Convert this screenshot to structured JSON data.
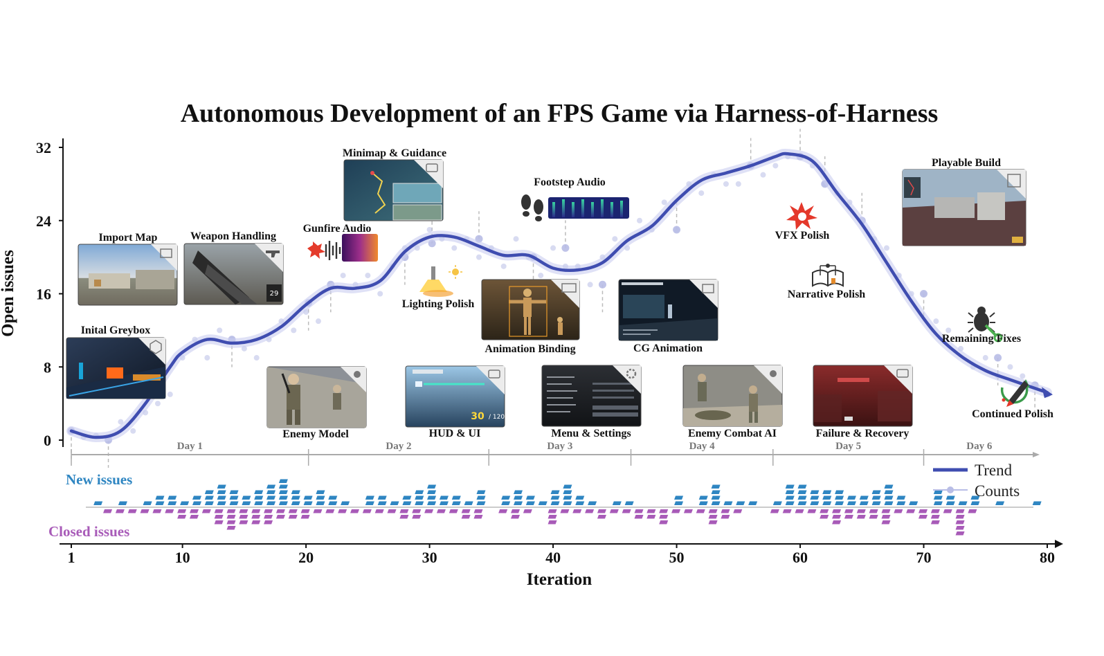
{
  "chart_data": {
    "type": "line",
    "title": "Autonomous Development of an FPS Game via Harness-of-Harness",
    "xlabel": "Iteration",
    "ylabel": "Open issues",
    "xlim": [
      1,
      80
    ],
    "ylim": [
      0,
      32
    ],
    "xticks": [
      1,
      10,
      20,
      30,
      40,
      50,
      60,
      70,
      80
    ],
    "yticks": [
      0,
      8,
      16,
      24,
      32
    ],
    "grid": false,
    "legend": {
      "position": "bottom-right",
      "entries": [
        "Trend",
        "Counts"
      ]
    },
    "colors": {
      "trend": "#3f4db0",
      "trend_halo": "#c9cdf0",
      "counts": "#b8bde6",
      "new": "#2f86c2",
      "closed": "#a85bb8",
      "guide": "#bbbbbb",
      "day_axis": "#aaaaaa"
    },
    "trend": {
      "x": [
        1,
        3,
        5,
        7,
        9,
        10,
        12,
        14,
        16,
        18,
        20,
        22,
        24,
        26,
        28,
        30,
        32,
        34,
        36,
        38,
        40,
        42,
        44,
        46,
        48,
        50,
        52,
        54,
        56,
        58,
        59,
        61,
        63,
        65,
        67,
        69,
        71,
        73,
        75,
        77,
        80
      ],
      "y": [
        1,
        0.3,
        1,
        4,
        8,
        9.6,
        11,
        10.6,
        11,
        12.4,
        14.8,
        16.6,
        16.6,
        17.4,
        20.6,
        22.2,
        22.2,
        21.2,
        20.2,
        20.2,
        18.8,
        18.6,
        19.4,
        21.8,
        23.4,
        26.2,
        28.4,
        29.2,
        30,
        31,
        31.3,
        30.5,
        27,
        23.6,
        19.4,
        15.2,
        11.6,
        9.2,
        7.6,
        6.6,
        5.2
      ]
    },
    "counts": {
      "x": [
        1,
        2,
        3,
        4,
        5,
        6,
        7,
        8,
        9,
        10,
        11,
        12,
        13,
        14,
        15,
        16,
        17,
        18,
        19,
        20,
        21,
        22,
        23,
        24,
        25,
        26,
        27,
        28,
        29,
        30,
        31,
        32,
        33,
        34,
        35,
        36,
        37,
        38,
        39,
        40,
        41,
        42,
        43,
        44,
        45,
        46,
        47,
        48,
        49,
        50,
        51,
        52,
        53,
        54,
        55,
        56,
        57,
        58,
        59,
        60,
        61,
        62,
        63,
        64,
        65,
        66,
        67,
        68,
        69,
        70,
        71,
        72,
        73,
        74,
        75,
        76,
        77,
        78,
        79,
        80
      ],
      "y": [
        1,
        0.3,
        0.5,
        0,
        2,
        1,
        3,
        4,
        5,
        9,
        11,
        9,
        12,
        11,
        10,
        9,
        11,
        13,
        12,
        14,
        13,
        17,
        18,
        17,
        18,
        16,
        19,
        21,
        21,
        23,
        22,
        21,
        22,
        20,
        21,
        19,
        22,
        20,
        18,
        21,
        19,
        19,
        17,
        20,
        22,
        21,
        24,
        23,
        26,
        23,
        28,
        27,
        29,
        28,
        28,
        30,
        29,
        30,
        31,
        31,
        30,
        28,
        27,
        26,
        24,
        22,
        21,
        18,
        16,
        16,
        13,
        12,
        10,
        8,
        9,
        7,
        8,
        7,
        6,
        5
      ]
    },
    "days": [
      {
        "label": "Day 1",
        "start": 1,
        "end": 20.2
      },
      {
        "label": "Day 2",
        "start": 20.2,
        "end": 34.8
      },
      {
        "label": "Day 3",
        "start": 34.8,
        "end": 46.3
      },
      {
        "label": "Day 4",
        "start": 46.3,
        "end": 57.8
      },
      {
        "label": "Day 5",
        "start": 57.8,
        "end": 70
      },
      {
        "label": "Day 6",
        "start": 70,
        "end": 79
      }
    ],
    "new_issues_label": "New issues",
    "closed_issues_label": "Closed issues",
    "new_issues": [
      0,
      0,
      1,
      0,
      1,
      0,
      1,
      2,
      2,
      1,
      2,
      3,
      4,
      3,
      2,
      3,
      4,
      5,
      3,
      2,
      3,
      2,
      1,
      0,
      2,
      2,
      1,
      2,
      3,
      4,
      2,
      2,
      1,
      3,
      0,
      2,
      3,
      2,
      1,
      3,
      4,
      2,
      1,
      0,
      1,
      1,
      0,
      0,
      0,
      2,
      0,
      2,
      4,
      1,
      1,
      1,
      0,
      1,
      4,
      4,
      3,
      3,
      3,
      2,
      2,
      3,
      4,
      2,
      1,
      0,
      3,
      2,
      1,
      2,
      0,
      1,
      0,
      0,
      1,
      0
    ],
    "closed_issues": [
      0,
      0,
      0,
      1,
      1,
      1,
      1,
      1,
      1,
      2,
      2,
      1,
      3,
      4,
      3,
      3,
      3,
      2,
      2,
      2,
      1,
      1,
      1,
      1,
      1,
      1,
      1,
      2,
      2,
      1,
      1,
      1,
      2,
      2,
      0,
      1,
      2,
      1,
      0,
      3,
      1,
      1,
      1,
      2,
      1,
      1,
      2,
      2,
      3,
      1,
      1,
      1,
      3,
      2,
      1,
      0,
      0,
      1,
      1,
      1,
      1,
      2,
      3,
      2,
      2,
      2,
      3,
      1,
      1,
      2,
      3,
      1,
      5,
      1,
      0,
      0,
      0,
      0,
      0,
      0
    ],
    "milestones": [
      {
        "label": "Inital Greybox",
        "x": 1,
        "y": 1
      },
      {
        "label": "Import Map",
        "x": 4,
        "y": 0
      },
      {
        "label": "Weapon Handling",
        "x": 14,
        "y": 11
      },
      {
        "label": "Enemy Model",
        "x": 20.2,
        "y": 15
      },
      {
        "label": "Gunfire Audio",
        "x": 22,
        "y": 17
      },
      {
        "label": "Lighting Polish",
        "x": 30.2,
        "y": 21.5
      },
      {
        "label": "Minimap & Guidance",
        "x": 28,
        "y": 20
      },
      {
        "label": "HUD & UI",
        "x": 34,
        "y": 22
      },
      {
        "label": "Animation Binding",
        "x": 38.4,
        "y": 20
      },
      {
        "label": "Footstep Audio",
        "x": 41,
        "y": 21
      },
      {
        "label": "Menu & Settings",
        "x": 44,
        "y": 17
      },
      {
        "label": "CG Animation",
        "x": 50,
        "y": 23
      },
      {
        "label": "Enemy Combat AI",
        "x": 56,
        "y": 30
      },
      {
        "label": "VFX Polish",
        "x": 60,
        "y": 31
      },
      {
        "label": "Narrative Polish",
        "x": 62,
        "y": 28
      },
      {
        "label": "Failure & Recovery",
        "x": 65,
        "y": 24
      },
      {
        "label": "Playable Build",
        "x": 70,
        "y": 16
      },
      {
        "label": "Remaining Fixes",
        "x": 76,
        "y": 9
      },
      {
        "label": "Continued Polish",
        "x": 79,
        "y": 6
      }
    ]
  }
}
